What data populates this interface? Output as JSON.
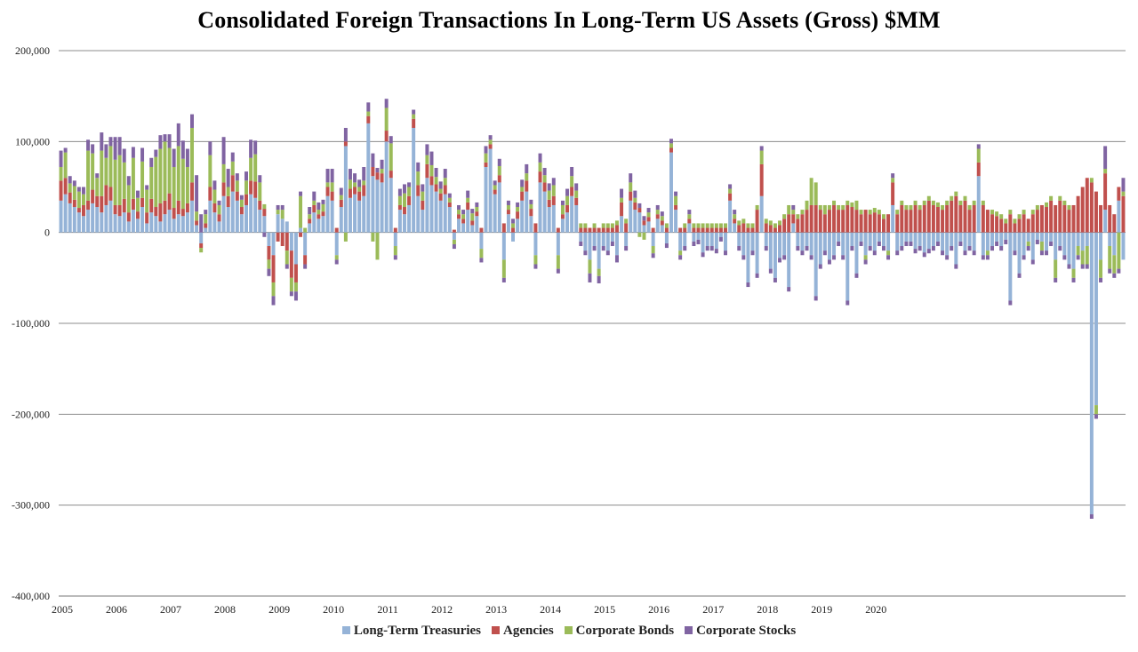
{
  "chart_data": {
    "type": "bar",
    "stacked": true,
    "title": "Consolidated Foreign Transactions In Long-Term US Assets (Gross) $MM",
    "xlabel": "",
    "ylabel": "",
    "ylim": [
      -400000,
      200000
    ],
    "yticks": [
      200000,
      100000,
      0,
      -100000,
      -200000,
      -300000,
      -400000
    ],
    "ytick_labels": [
      "200,000",
      "100,000",
      "0",
      "-100,000",
      "-200,000",
      "-300,000",
      "-400,000"
    ],
    "x_start": "2005-01",
    "x_end": "2020-08",
    "xtick_labels": [
      "2005",
      "2006",
      "2007",
      "2008",
      "2009",
      "2010",
      "2011",
      "2012",
      "2013",
      "2014",
      "2015",
      "2016",
      "2017",
      "2018",
      "2019",
      "2020"
    ],
    "grid": true,
    "legend_position": "bottom",
    "series": [
      {
        "name": "Long-Term Treasuries",
        "color": "#95b3d7",
        "values": [
          35000,
          42000,
          32000,
          28000,
          22000,
          18000,
          25000,
          32000,
          28000,
          22000,
          30000,
          35000,
          20000,
          18000,
          22000,
          12000,
          25000,
          15000,
          28000,
          10000,
          22000,
          18000,
          12000,
          20000,
          25000,
          15000,
          20000,
          18000,
          22000,
          35000,
          8000,
          -12000,
          5000,
          35000,
          22000,
          12000,
          40000,
          28000,
          45000,
          35000,
          20000,
          30000,
          42000,
          38000,
          25000,
          18000,
          -15000,
          -25000,
          20000,
          15000,
          12000,
          -20000,
          -35000,
          5000,
          -25000,
          10000,
          22000,
          15000,
          18000,
          40000,
          35000,
          -25000,
          28000,
          95000,
          38000,
          42000,
          35000,
          40000,
          120000,
          62000,
          58000,
          55000,
          100000,
          60000,
          -15000,
          25000,
          20000,
          30000,
          115000,
          40000,
          25000,
          60000,
          52000,
          45000,
          35000,
          42000,
          28000,
          -8000,
          15000,
          10000,
          25000,
          8000,
          18000,
          -18000,
          72000,
          92000,
          42000,
          55000,
          -30000,
          20000,
          -10000,
          15000,
          35000,
          45000,
          18000,
          -25000,
          55000,
          45000,
          28000,
          30000,
          -25000,
          15000,
          22000,
          40000,
          30000,
          -10000,
          -20000,
          -30000,
          -15000,
          -40000,
          -15000,
          -20000,
          -10000,
          -25000,
          18000,
          -15000,
          35000,
          25000,
          22000,
          8000,
          12000,
          -15000,
          15000,
          8000,
          -12000,
          88000,
          25000,
          -20000,
          -15000,
          10000,
          -10000,
          -8000,
          -22000,
          -15000,
          -15000,
          -18000,
          -5000,
          -20000,
          35000,
          10000,
          -15000,
          -25000,
          -55000,
          -20000,
          -45000,
          40000,
          -15000,
          -40000,
          -50000,
          -28000,
          -25000,
          -60000,
          10000,
          -15000,
          -20000,
          -15000,
          -25000,
          -70000,
          -35000,
          -20000,
          -30000,
          -25000,
          -10000,
          -25000,
          -75000,
          -15000,
          -45000,
          -10000,
          -25000,
          -15000,
          -20000,
          -10000,
          -15000,
          -20000,
          30000,
          -20000,
          -15000,
          -10000,
          -10000,
          -18000,
          -15000,
          -22000,
          -18000,
          -15000,
          -10000,
          -20000,
          -25000,
          -15000,
          -35000,
          -10000,
          -20000,
          -15000,
          -20000,
          62000,
          -25000,
          -20000,
          -15000,
          -10000,
          -15000,
          -8000,
          -75000,
          -20000,
          -45000,
          -25000,
          -10000,
          -30000,
          -8000,
          -10000,
          -20000,
          -10000,
          -30000,
          -15000,
          -25000,
          -35000,
          -40000,
          -15000,
          -20000,
          -15000,
          -310000,
          -190000,
          -30000,
          25000,
          -15000,
          -25000,
          35000,
          -30000
        ]
      },
      {
        "name": "Agencies",
        "color": "#c0504d",
        "values": [
          22000,
          18000,
          12000,
          8000,
          5000,
          12000,
          10000,
          15000,
          12000,
          18000,
          22000,
          15000,
          10000,
          12000,
          15000,
          10000,
          12000,
          8000,
          10000,
          12000,
          15000,
          10000,
          20000,
          15000,
          18000,
          12000,
          15000,
          8000,
          10000,
          20000,
          5000,
          -5000,
          5000,
          15000,
          10000,
          8000,
          15000,
          12000,
          18000,
          10000,
          8000,
          12000,
          15000,
          18000,
          10000,
          8000,
          -15000,
          -30000,
          -10000,
          -15000,
          -20000,
          -30000,
          -20000,
          -5000,
          -10000,
          5000,
          8000,
          5000,
          5000,
          10000,
          10000,
          5000,
          8000,
          5000,
          10000,
          8000,
          10000,
          12000,
          8000,
          10000,
          8000,
          10000,
          12000,
          8000,
          5000,
          5000,
          8000,
          10000,
          10000,
          12000,
          10000,
          15000,
          10000,
          8000,
          8000,
          10000,
          5000,
          3000,
          5000,
          5000,
          8000,
          5000,
          5000,
          5000,
          5000,
          5000,
          5000,
          8000,
          10000,
          5000,
          5000,
          8000,
          10000,
          12000,
          8000,
          10000,
          12000,
          10000,
          8000,
          10000,
          5000,
          5000,
          8000,
          10000,
          8000,
          5000,
          5000,
          5000,
          5000,
          5000,
          5000,
          5000,
          5000,
          8000,
          15000,
          10000,
          10000,
          8000,
          5000,
          5000,
          5000,
          5000,
          5000,
          5000,
          5000,
          5000,
          5000,
          5000,
          5000,
          5000,
          5000,
          5000,
          5000,
          5000,
          5000,
          5000,
          5000,
          5000,
          8000,
          5000,
          8000,
          10000,
          5000,
          5000,
          25000,
          35000,
          10000,
          8000,
          5000,
          8000,
          15000,
          20000,
          10000,
          15000,
          20000,
          25000,
          30000,
          30000,
          25000,
          20000,
          25000,
          30000,
          25000,
          25000,
          30000,
          28000,
          25000,
          20000,
          25000,
          20000,
          22000,
          20000,
          15000,
          20000,
          25000,
          20000,
          30000,
          25000,
          25000,
          30000,
          25000,
          30000,
          35000,
          30000,
          28000,
          25000,
          30000,
          35000,
          40000,
          30000,
          35000,
          25000,
          30000,
          15000,
          30000,
          25000,
          20000,
          18000,
          15000,
          10000,
          20000,
          10000,
          15000,
          20000,
          15000,
          20000,
          25000,
          30000,
          28000,
          35000,
          30000,
          35000,
          30000,
          25000,
          30000,
          40000,
          50000,
          60000,
          55000,
          45000,
          30000,
          40000,
          30000,
          20000,
          15000,
          40000
        ]
      },
      {
        "name": "Corporate Bonds",
        "color": "#9bbb59",
        "values": [
          15000,
          28000,
          10000,
          15000,
          18000,
          12000,
          55000,
          40000,
          20000,
          50000,
          30000,
          45000,
          50000,
          55000,
          40000,
          30000,
          45000,
          15000,
          40000,
          25000,
          35000,
          55000,
          60000,
          65000,
          50000,
          45000,
          60000,
          55000,
          40000,
          60000,
          10000,
          -5000,
          10000,
          35000,
          15000,
          10000,
          20000,
          10000,
          15000,
          12000,
          8000,
          15000,
          25000,
          30000,
          20000,
          5000,
          -10000,
          -15000,
          5000,
          10000,
          -15000,
          -15000,
          -10000,
          35000,
          5000,
          5000,
          5000,
          5000,
          8000,
          5000,
          10000,
          -5000,
          5000,
          -10000,
          10000,
          5000,
          5000,
          5000,
          5000,
          -10000,
          -30000,
          5000,
          25000,
          30000,
          -10000,
          10000,
          15000,
          10000,
          5000,
          15000,
          10000,
          10000,
          12000,
          8000,
          5000,
          8000,
          5000,
          -5000,
          5000,
          5000,
          5000,
          8000,
          5000,
          -10000,
          10000,
          5000,
          5000,
          10000,
          -20000,
          5000,
          5000,
          5000,
          5000,
          8000,
          5000,
          -10000,
          10000,
          8000,
          10000,
          12000,
          -15000,
          10000,
          10000,
          12000,
          8000,
          5000,
          5000,
          -15000,
          5000,
          -8000,
          5000,
          5000,
          5000,
          5000,
          5000,
          5000,
          10000,
          5000,
          -5000,
          -8000,
          5000,
          -8000,
          5000,
          5000,
          5000,
          5000,
          10000,
          -5000,
          5000,
          5000,
          5000,
          5000,
          5000,
          5000,
          5000,
          5000,
          5000,
          5000,
          5000,
          5000,
          5000,
          5000,
          5000,
          5000,
          5000,
          15000,
          5000,
          5000,
          5000,
          5000,
          5000,
          10000,
          5000,
          5000,
          5000,
          10000,
          30000,
          25000,
          5000,
          10000,
          5000,
          5000,
          5000,
          5000,
          5000,
          5000,
          10000,
          5000,
          -5000,
          5000,
          5000,
          5000,
          5000,
          -5000,
          5000,
          5000,
          5000,
          5000,
          5000,
          5000,
          5000,
          5000,
          5000,
          5000,
          5000,
          5000,
          5000,
          5000,
          5000,
          5000,
          5000,
          5000,
          5000,
          15000,
          5000,
          -5000,
          5000,
          5000,
          5000,
          5000,
          5000,
          5000,
          5000,
          5000,
          -5000,
          5000,
          5000,
          -10000,
          5000,
          5000,
          -20000,
          5000,
          5000,
          5000,
          -10000,
          -10000,
          -15000,
          -20000,
          5000,
          -10000,
          -20000,
          5000,
          -25000,
          -20000,
          -40000,
          5000
        ]
      },
      {
        "name": "Corporate Stocks",
        "color": "#8064a2",
        "values": [
          18000,
          5000,
          8000,
          6000,
          5000,
          8000,
          12000,
          10000,
          5000,
          20000,
          15000,
          10000,
          25000,
          20000,
          15000,
          10000,
          12000,
          8000,
          15000,
          5000,
          10000,
          8000,
          15000,
          8000,
          15000,
          20000,
          25000,
          20000,
          20000,
          15000,
          40000,
          20000,
          5000,
          15000,
          10000,
          5000,
          30000,
          20000,
          10000,
          8000,
          5000,
          10000,
          20000,
          15000,
          8000,
          -5000,
          -8000,
          -10000,
          5000,
          5000,
          -5000,
          -5000,
          -10000,
          5000,
          -5000,
          8000,
          10000,
          8000,
          5000,
          15000,
          15000,
          -5000,
          8000,
          15000,
          12000,
          10000,
          8000,
          15000,
          10000,
          15000,
          5000,
          10000,
          10000,
          8000,
          -5000,
          8000,
          10000,
          5000,
          5000,
          10000,
          8000,
          12000,
          15000,
          10000,
          8000,
          10000,
          5000,
          -5000,
          5000,
          5000,
          8000,
          5000,
          5000,
          -5000,
          8000,
          5000,
          5000,
          8000,
          -5000,
          5000,
          5000,
          5000,
          8000,
          10000,
          5000,
          -5000,
          10000,
          8000,
          8000,
          8000,
          -5000,
          5000,
          8000,
          10000,
          8000,
          -5000,
          -5000,
          -10000,
          -5000,
          -8000,
          -5000,
          -5000,
          -5000,
          -8000,
          10000,
          -5000,
          10000,
          8000,
          5000,
          5000,
          5000,
          -5000,
          5000,
          5000,
          -5000,
          5000,
          5000,
          -5000,
          -5000,
          5000,
          -5000,
          -5000,
          -5000,
          -5000,
          -5000,
          -5000,
          -5000,
          -5000,
          5000,
          5000,
          -5000,
          -5000,
          -5000,
          -5000,
          -5000,
          5000,
          -5000,
          -5000,
          -5000,
          -5000,
          -5000,
          -5000,
          5000,
          -5000,
          -5000,
          -5000,
          -5000,
          -5000,
          -5000,
          -5000,
          -5000,
          -5000,
          -5000,
          -5000,
          -5000,
          -5000,
          -5000,
          -5000,
          -5000,
          -5000,
          -5000,
          -5000,
          -5000,
          -5000,
          5000,
          -5000,
          -5000,
          -5000,
          -5000,
          -5000,
          -5000,
          -5000,
          -5000,
          -5000,
          -5000,
          -5000,
          -5000,
          -5000,
          -5000,
          -5000,
          -5000,
          -5000,
          -5000,
          5000,
          -5000,
          -5000,
          -5000,
          -5000,
          -5000,
          -5000,
          -5000,
          -5000,
          -5000,
          -5000,
          -5000,
          -5000,
          -5000,
          -5000,
          -5000,
          -5000,
          -5000,
          -5000,
          -5000,
          -5000,
          -5000,
          -5000,
          -5000,
          -5000,
          -5000,
          -5000,
          -5000,
          25000,
          -5000,
          -5000,
          -5000,
          15000
        ]
      }
    ]
  }
}
